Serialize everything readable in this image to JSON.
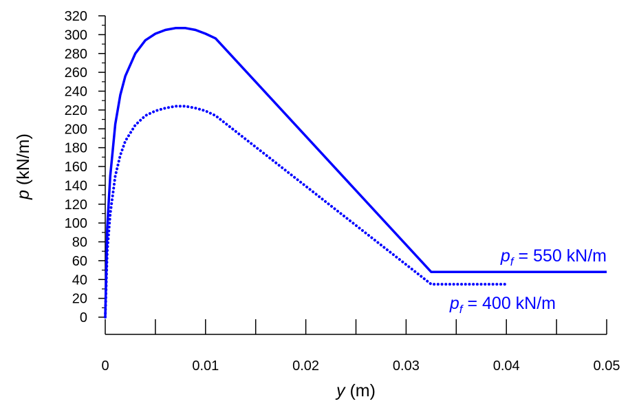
{
  "chart_data": {
    "type": "line",
    "xlabel": {
      "var": "y",
      "unit": " (m)"
    },
    "ylabel": {
      "var": "p",
      "unit": " (kN/m)"
    },
    "xlim": [
      0,
      0.05
    ],
    "ylim": [
      0,
      320
    ],
    "x_ticks": [
      0,
      0.01,
      0.02,
      0.03,
      0.04,
      0.05
    ],
    "x_tick_labels": [
      "0",
      "0.01",
      "0.02",
      "0.03",
      "0.04",
      "0.05"
    ],
    "x_minor_step": 0.005,
    "y_ticks": [
      0,
      20,
      40,
      60,
      80,
      100,
      120,
      140,
      160,
      180,
      200,
      220,
      240,
      260,
      280,
      300,
      320
    ],
    "y_tick_labels": [
      "0",
      "20",
      "40",
      "60",
      "80",
      "100",
      "120",
      "140",
      "160",
      "180",
      "200",
      "220",
      "240",
      "260",
      "280",
      "300",
      "320"
    ],
    "grid": false,
    "line_color": "#0000ff",
    "series": [
      {
        "annotation": {
          "var": "p",
          "sub": "f",
          "rest": " = 550 kN/m"
        },
        "style": "solid",
        "x": [
          0,
          0.0002,
          0.0005,
          0.001,
          0.0015,
          0.002,
          0.003,
          0.004,
          0.005,
          0.006,
          0.007,
          0.008,
          0.009,
          0.01,
          0.011,
          0.0325,
          0.05
        ],
        "y": [
          0,
          95,
          150,
          205,
          236,
          256,
          280,
          294,
          301,
          305,
          307,
          307,
          305,
          301,
          296,
          48,
          48
        ]
      },
      {
        "annotation": {
          "var": "p",
          "sub": "f",
          "rest": " = 400 kN/m"
        },
        "style": "dotted",
        "x": [
          0,
          0.0002,
          0.0005,
          0.001,
          0.0015,
          0.002,
          0.003,
          0.004,
          0.005,
          0.006,
          0.007,
          0.008,
          0.009,
          0.01,
          0.011,
          0.0325,
          0.04
        ],
        "y": [
          0,
          70,
          110,
          150,
          172,
          187,
          204,
          214,
          219,
          222,
          224,
          224,
          222,
          219,
          214,
          35,
          35
        ]
      }
    ]
  }
}
